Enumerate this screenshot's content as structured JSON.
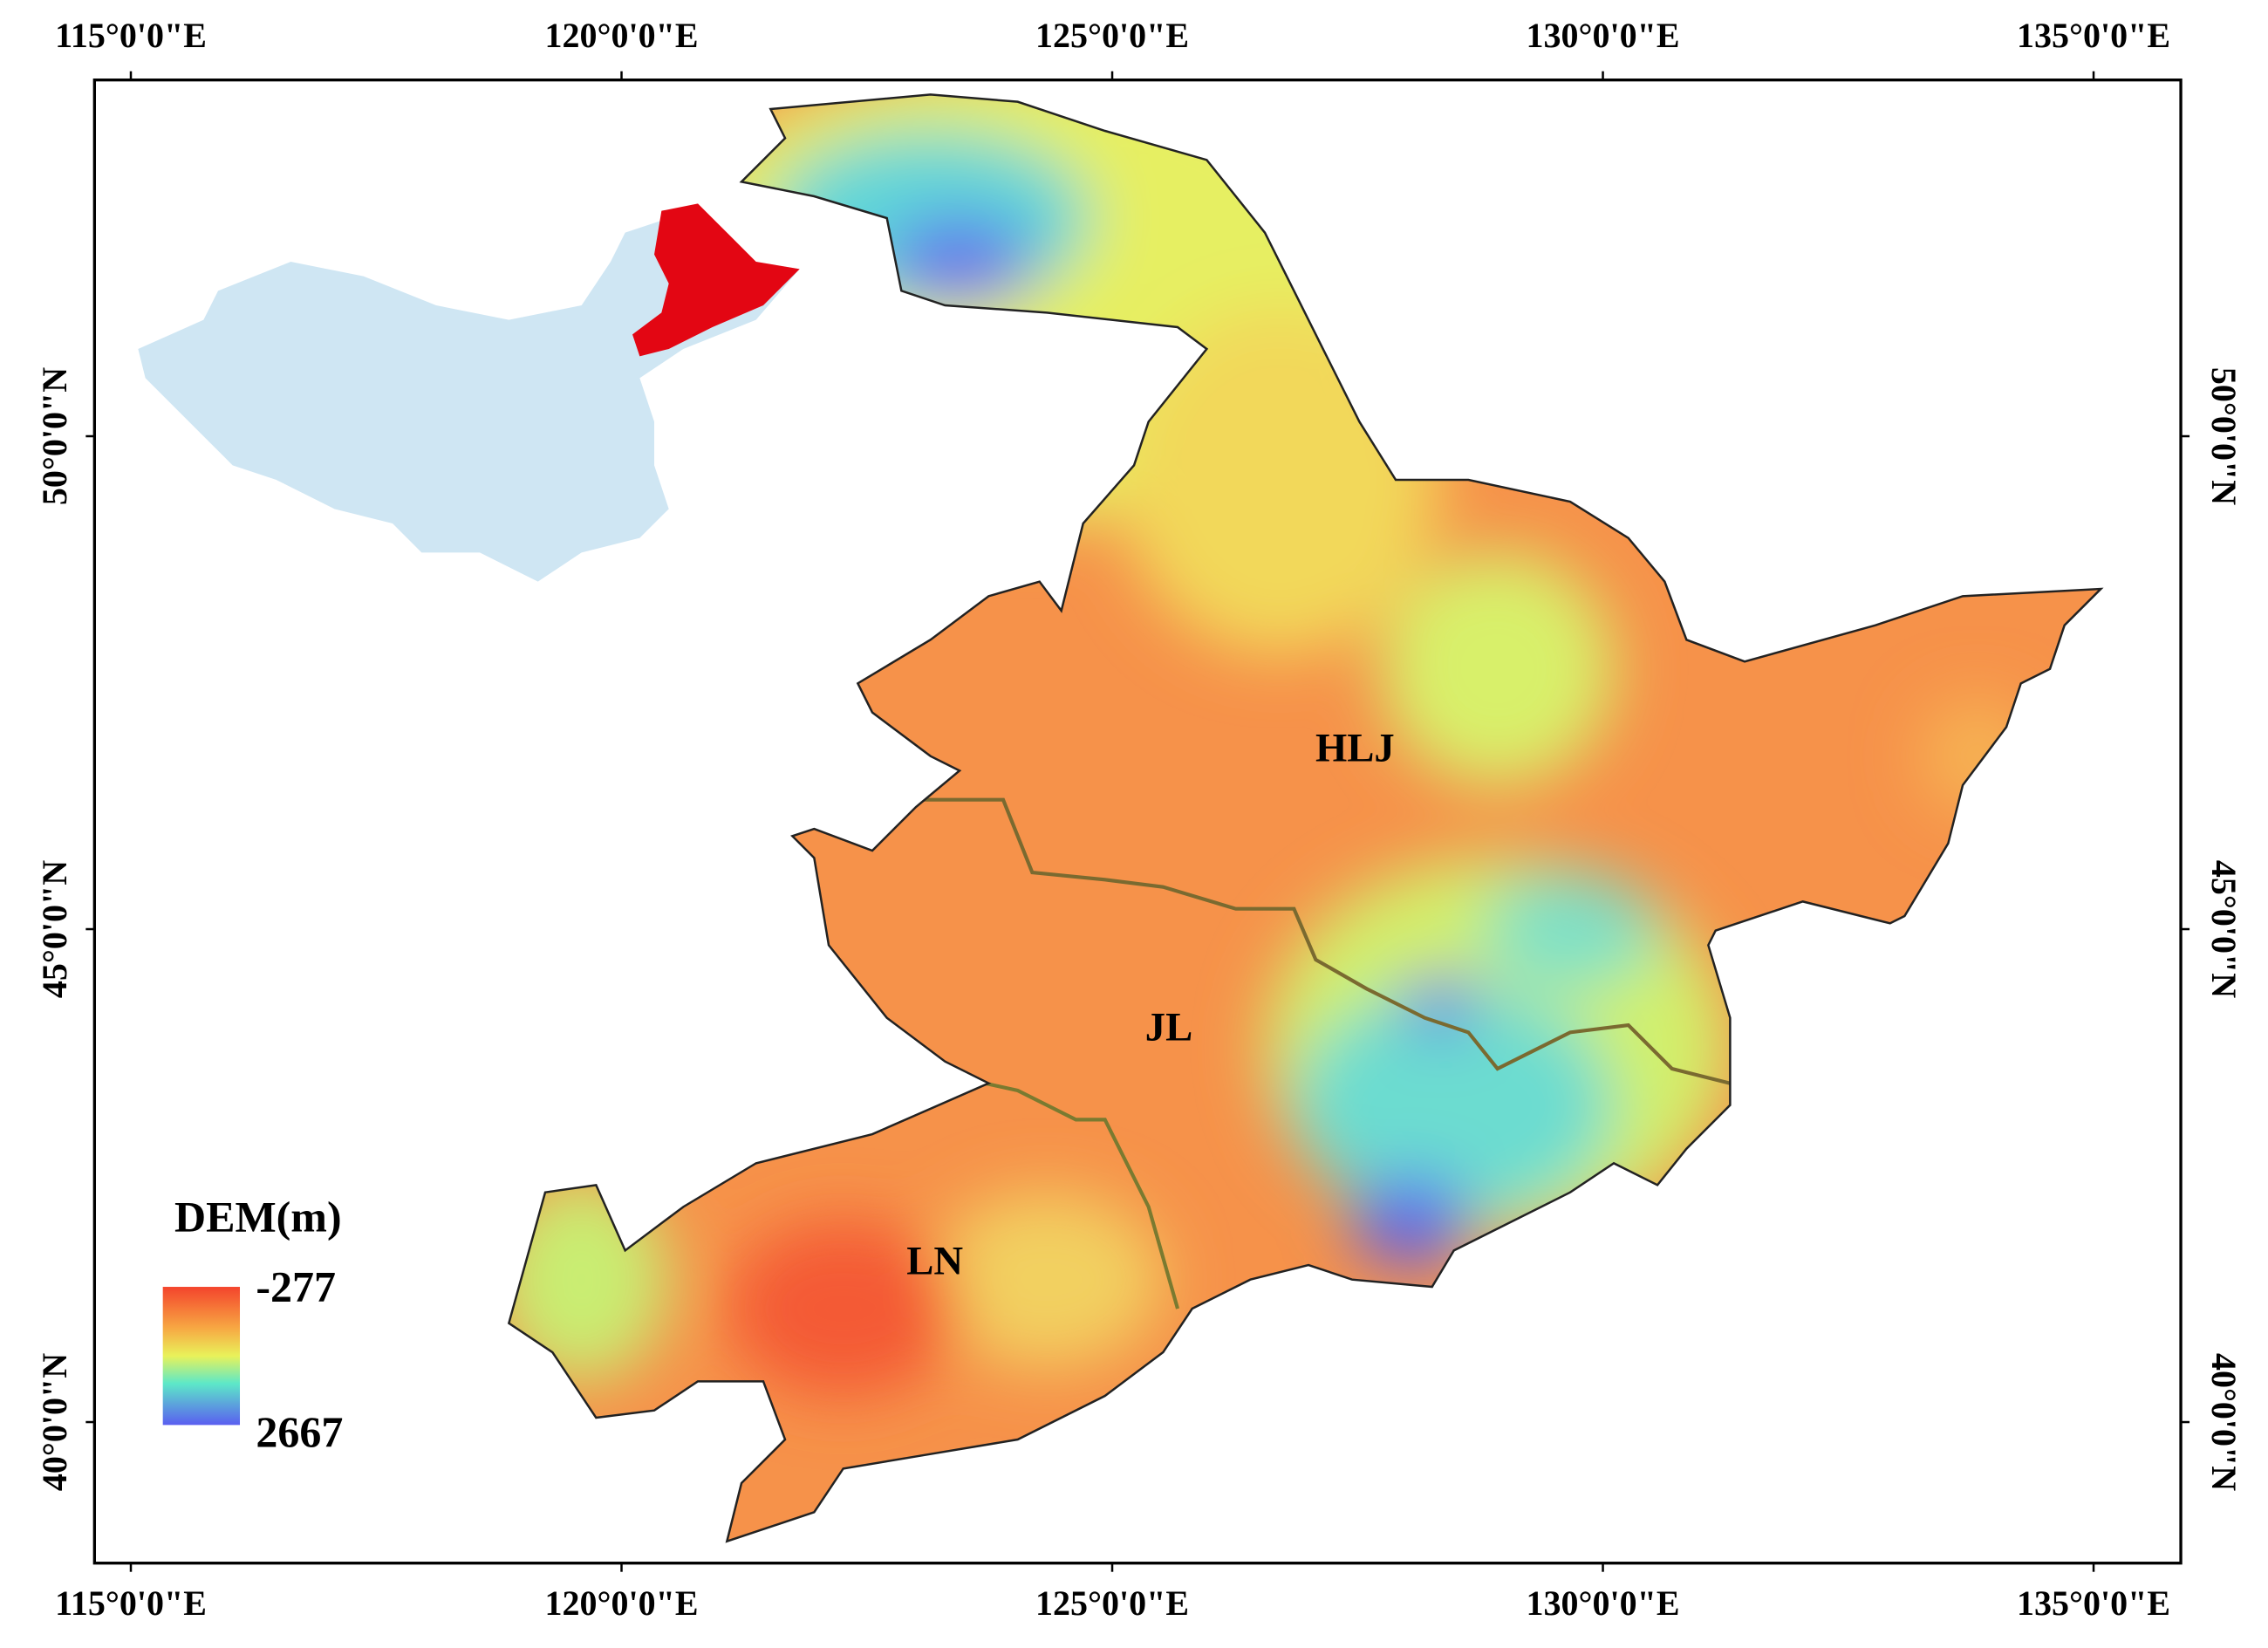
{
  "map": {
    "top_ticks": [
      "115°0'0\"E",
      "120°0'0\"E",
      "125°0'0\"E",
      "130°0'0\"E",
      "135°0'0\"E"
    ],
    "bottom_ticks": [
      "115°0'0\"E",
      "120°0'0\"E",
      "125°0'0\"E",
      "130°0'0\"E",
      "135°0'0\"E"
    ],
    "left_ticks": [
      "50°0'0\"N",
      "45°0'0\"N",
      "40°0'0\"N"
    ],
    "right_ticks": [
      "50°0'0\"N",
      "45°0'0\"N",
      "40°0'0\"N"
    ],
    "regions": [
      "HLJ",
      "JL",
      "LN"
    ],
    "legend": {
      "title": "DEM(m)",
      "high": "-277",
      "low": "2667"
    }
  }
}
